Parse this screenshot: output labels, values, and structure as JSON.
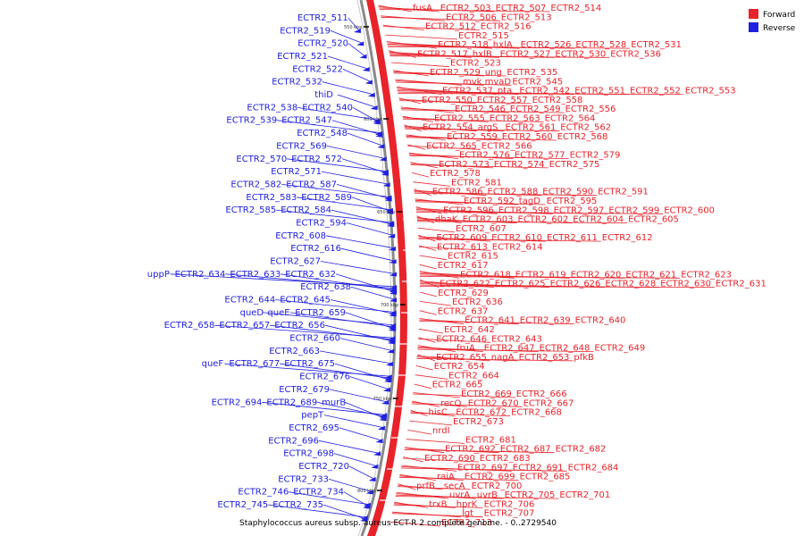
{
  "caption": "Staphylococcus aureus subsp. aureus ECT-R 2 complete genome. - 0..2729540",
  "legend": {
    "forward": "Forward",
    "reverse": "Reverse",
    "forward_color": "#e8232a",
    "reverse_color": "#2020e0"
  },
  "ticks": [
    "550 kbp",
    "600 kbp",
    "650 kbp",
    "700 kbp",
    "750 kbp",
    "800 kbp"
  ],
  "forward_labels": [
    [
      "fusA",
      "ECTR2_503",
      "ECTR2_507",
      "ECTR2_514"
    ],
    [
      "ECTR2_506",
      "ECTR2_513"
    ],
    [
      "ECTR2_512",
      "ECTR2_516"
    ],
    [
      "ECTR2_515"
    ],
    [
      "ECTR2_518",
      "hxlA",
      "ECTR2_526",
      "ECTR2_528",
      "ECTR2_531"
    ],
    [
      "ECTR2_517",
      "hxlB",
      "ECTR2_527",
      "ECTR2_530",
      "ECTR2_536"
    ],
    [
      "ECTR2_523"
    ],
    [
      "ECTR2_529",
      "ung",
      "ECTR2_535"
    ],
    [
      "mvk",
      "mvaD",
      "ECTR2_545"
    ],
    [
      "ECTR2_537",
      "pta",
      "ECTR2_542",
      "ECTR2_551",
      "ECTR2_552",
      "ECTR2_553"
    ],
    [
      "ECTR2_550",
      "ECTR2_557",
      "ECTR2_558"
    ],
    [
      "ECTR2_546",
      "ECTR2_549",
      "ECTR2_556"
    ],
    [
      "ECTR2_555",
      "ECTR2_563",
      "ECTR2_564"
    ],
    [
      "ECTR2_554",
      "argS",
      "ECTR2_561",
      "ECTR2_562"
    ],
    [
      "ECTR2_559",
      "ECTR2_560",
      "ECTR2_568"
    ],
    [
      "ECTR2_565",
      "ECTR2_566"
    ],
    [
      "ECTR2_576",
      "ECTR2_577",
      "ECTR2_579"
    ],
    [
      "ECTR2_573",
      "ECTR2_574",
      "ECTR2_575"
    ],
    [
      "ECTR2_578"
    ],
    [
      "ECTR2_581"
    ],
    [
      "ECTR2_586",
      "ECTR2_588",
      "ECTR2_590",
      "ECTR2_591"
    ],
    [
      "ECTR2_592",
      "tagD",
      "ECTR2_595"
    ],
    [
      "ECTR2_596",
      "ECTR2_598",
      "ECTR2_597",
      "ECTR2_599",
      "ECTR2_600"
    ],
    [
      "dhaK",
      "ECTR2_603",
      "ECTR2_602",
      "ECTR2_604",
      "ECTR2_605"
    ],
    [
      "ECTR2_607"
    ],
    [
      "ECTR2_609",
      "ECTR2_610",
      "ECTR2_611",
      "ECTR2_612"
    ],
    [
      "ECTR2_613",
      "ECTR2_614"
    ],
    [
      "ECTR2_615"
    ],
    [
      "ECTR2_617"
    ],
    [
      "ECTR2_618",
      "ECTR2_619",
      "ECTR2_620",
      "ECTR2_621",
      "ECTR2_623"
    ],
    [
      "ECTR2_622",
      "ECTR2_625",
      "ECTR2_626",
      "ECTR2_628",
      "ECTR2_630",
      "ECTR2_631"
    ],
    [
      "ECTR2_629"
    ],
    [
      "ECTR2_636"
    ],
    [
      "ECTR2_637"
    ],
    [
      "ECTR2_641",
      "ECTR2_639",
      "ECTR2_640"
    ],
    [
      "ECTR2_642"
    ],
    [
      "ECTR2_646",
      "ECTR2_643"
    ],
    [
      "fruA",
      "ECTR2_647",
      "ECTR2_648",
      "ECTR2_649"
    ],
    [
      "ECTR2_655",
      "nagA",
      "ECTR2_653",
      "pfkB"
    ],
    [
      "ECTR2_654"
    ],
    [
      "ECTR2_664"
    ],
    [
      "ECTR2_665"
    ],
    [
      "ECTR2_669",
      "ECTR2_666"
    ],
    [
      "recQ",
      "ECTR2_670",
      "ECTR2_667"
    ],
    [
      "hisC",
      "ECTR2_672",
      "ECTR2_668"
    ],
    [
      "ECTR2_673"
    ],
    [
      "nrdI"
    ],
    [
      "ECTR2_681"
    ],
    [
      "ECTR2_692",
      "ECTR2_687",
      "ECTR2_682"
    ],
    [
      "ECTR2_690",
      "ECTR2_683"
    ],
    [
      "ECTR2_697",
      "ECTR2_691",
      "ECTR2_684"
    ],
    [
      "raiA",
      "ECTR2_699",
      "ECTR2_685"
    ],
    [
      "prfB",
      "secA",
      "ECTR2_700"
    ],
    [
      "uvrA",
      "uvrB",
      "ECTR2_705",
      "ECTR2_701"
    ],
    [
      "trxB",
      "hprK",
      "ECTR2_706"
    ],
    [
      "lgt",
      "ECTR2_707"
    ],
    [
      "ECTR2_713"
    ]
  ],
  "reverse_labels": [
    [
      "ECTR2_511"
    ],
    [
      "ECTR2_519"
    ],
    [
      "ECTR2_520"
    ],
    [
      "ECTR2_521"
    ],
    [
      "ECTR2_522"
    ],
    [
      "ECTR2_532"
    ],
    [
      "thiD"
    ],
    [
      "ECTR2_538",
      "ECTR2_540"
    ],
    [
      "ECTR2_539",
      "ECTR2_547"
    ],
    [
      "ECTR2_548"
    ],
    [
      "ECTR2_569"
    ],
    [
      "ECTR2_570",
      "ECTR2_572"
    ],
    [
      "ECTR2_571"
    ],
    [
      "ECTR2_582",
      "ECTR2_587"
    ],
    [
      "ECTR2_583",
      "ECTR2_589"
    ],
    [
      "ECTR2_585",
      "ECTR2_584"
    ],
    [
      "ECTR2_594"
    ],
    [
      "ECTR2_608"
    ],
    [
      "ECTR2_616"
    ],
    [
      "ECTR2_627"
    ],
    [
      "uppP",
      "ECTR2_634",
      "ECTR2_633",
      "ECTR2_632"
    ],
    [
      "ECTR2_638"
    ],
    [
      "ECTR2_644",
      "ECTR2_645"
    ],
    [
      "queD",
      "queE",
      "ECTR2_659"
    ],
    [
      "ECTR2_658",
      "ECTR2_657",
      "ECTR2_656"
    ],
    [
      "ECTR2_660"
    ],
    [
      "ECTR2_663"
    ],
    [
      "queF",
      "ECTR2_677",
      "ECTR2_675"
    ],
    [
      "ECTR2_676"
    ],
    [
      "ECTR2_679"
    ],
    [
      "ECTR2_694",
      "ECTR2_689",
      "murB"
    ],
    [
      "pepT"
    ],
    [
      "ECTR2_695"
    ],
    [
      "ECTR2_696"
    ],
    [
      "ECTR2_698"
    ],
    [
      "ECTR2_720"
    ],
    [
      "ECTR2_733"
    ],
    [
      "ECTR2_746",
      "ECTR2_734"
    ],
    [
      "ECTR2_745",
      "ECTR2_735"
    ]
  ]
}
